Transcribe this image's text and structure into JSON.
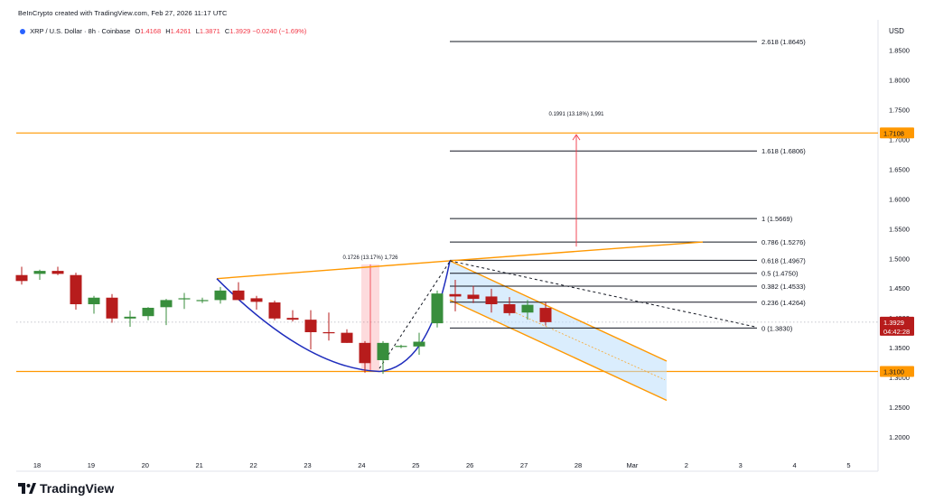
{
  "header": {
    "credit": "BeInCrypto created with TradingView.com, Feb 27, 2026 11:17 UTC",
    "symbol": "XRP / U.S. Dollar · 8h · Coinbase",
    "open_label": "O",
    "open": "1.4168",
    "high_label": "H",
    "high": "1.4261",
    "low_label": "L",
    "low": "1.3871",
    "close_label": "C",
    "close": "1.3929",
    "change": "−0.0240 (−1.69%)"
  },
  "brand": {
    "name": "TradingView",
    "icon": "tradingview-logo-icon"
  },
  "colors": {
    "up": "#388e3c",
    "down": "#b71c1c",
    "orange": "#ff9800",
    "wedge": "#1f2dbd",
    "fib": "#131722",
    "target": "#f23645",
    "channel": "#bbdefb"
  },
  "chart_data": {
    "type": "candlestick",
    "currency": "USD",
    "ylim": [
      1.16,
      1.89
    ],
    "y_ticks": [
      "1.2000",
      "1.2500",
      "1.3000",
      "1.3500",
      "1.4000",
      "1.4500",
      "1.5000",
      "1.5500",
      "1.6000",
      "1.6500",
      "1.7000",
      "1.7500",
      "1.8000",
      "1.8500"
    ],
    "x_ticks": [
      "18",
      "19",
      "20",
      "21",
      "22",
      "23",
      "24",
      "25",
      "26",
      "27",
      "28",
      "Mar",
      "2",
      "3",
      "4",
      "5"
    ],
    "price_labels": {
      "resistance": "1.7108",
      "current": "1.3929",
      "countdown": "04:42:28",
      "support": "1.3100"
    },
    "fib_levels": [
      {
        "label": "2.618 (1.8645)",
        "value": 1.8645
      },
      {
        "label": "1.618 (1.6806)",
        "value": 1.6806
      },
      {
        "label": "1 (1.5669)",
        "value": 1.5669
      },
      {
        "label": "0.786 (1.5276)",
        "value": 1.5276
      },
      {
        "label": "0.618 (1.4967)",
        "value": 1.4967
      },
      {
        "label": "0.5 (1.4750)",
        "value": 1.475
      },
      {
        "label": "0.382 (1.4533)",
        "value": 1.4533
      },
      {
        "label": "0.236 (1.4264)",
        "value": 1.4264
      },
      {
        "label": "0 (1.3830)",
        "value": 1.383
      }
    ],
    "horizontal_levels": [
      1.7108,
      1.31
    ],
    "annotations": {
      "left_measure": "0.1726 (13.17%) 1,726",
      "right_measure": "0.1991 (13.18%) 1,991"
    },
    "candles": [
      {
        "o": 1.472,
        "h": 1.486,
        "l": 1.456,
        "c": 1.462
      },
      {
        "o": 1.474,
        "h": 1.481,
        "l": 1.464,
        "c": 1.479
      },
      {
        "o": 1.479,
        "h": 1.486,
        "l": 1.472,
        "c": 1.474
      },
      {
        "o": 1.472,
        "h": 1.476,
        "l": 1.414,
        "c": 1.423
      },
      {
        "o": 1.423,
        "h": 1.437,
        "l": 1.407,
        "c": 1.434
      },
      {
        "o": 1.434,
        "h": 1.44,
        "l": 1.392,
        "c": 1.399
      },
      {
        "o": 1.399,
        "h": 1.412,
        "l": 1.385,
        "c": 1.402
      },
      {
        "o": 1.403,
        "h": 1.418,
        "l": 1.396,
        "c": 1.417
      },
      {
        "o": 1.418,
        "h": 1.432,
        "l": 1.388,
        "c": 1.43
      },
      {
        "o": 1.432,
        "h": 1.442,
        "l": 1.415,
        "c": 1.433
      },
      {
        "o": 1.429,
        "h": 1.434,
        "l": 1.425,
        "c": 1.43
      },
      {
        "o": 1.43,
        "h": 1.452,
        "l": 1.424,
        "c": 1.446
      },
      {
        "o": 1.446,
        "h": 1.46,
        "l": 1.43,
        "c": 1.43
      },
      {
        "o": 1.433,
        "h": 1.437,
        "l": 1.414,
        "c": 1.427
      },
      {
        "o": 1.426,
        "h": 1.429,
        "l": 1.396,
        "c": 1.399
      },
      {
        "o": 1.4,
        "h": 1.413,
        "l": 1.394,
        "c": 1.397
      },
      {
        "o": 1.397,
        "h": 1.413,
        "l": 1.347,
        "c": 1.376
      },
      {
        "o": 1.376,
        "h": 1.409,
        "l": 1.362,
        "c": 1.375
      },
      {
        "o": 1.375,
        "h": 1.381,
        "l": 1.358,
        "c": 1.358
      },
      {
        "o": 1.358,
        "h": 1.361,
        "l": 1.308,
        "c": 1.324
      },
      {
        "o": 1.329,
        "h": 1.361,
        "l": 1.306,
        "c": 1.358
      },
      {
        "o": 1.352,
        "h": 1.355,
        "l": 1.349,
        "c": 1.353
      },
      {
        "o": 1.352,
        "h": 1.375,
        "l": 1.338,
        "c": 1.36
      },
      {
        "o": 1.391,
        "h": 1.446,
        "l": 1.384,
        "c": 1.441
      },
      {
        "o": 1.44,
        "h": 1.464,
        "l": 1.411,
        "c": 1.436
      },
      {
        "o": 1.439,
        "h": 1.454,
        "l": 1.425,
        "c": 1.432
      },
      {
        "o": 1.436,
        "h": 1.449,
        "l": 1.409,
        "c": 1.423
      },
      {
        "o": 1.423,
        "h": 1.435,
        "l": 1.404,
        "c": 1.408
      },
      {
        "o": 1.409,
        "h": 1.43,
        "l": 1.397,
        "c": 1.422
      },
      {
        "o": 1.4168,
        "h": 1.4261,
        "l": 1.3871,
        "c": 1.3929
      }
    ]
  }
}
